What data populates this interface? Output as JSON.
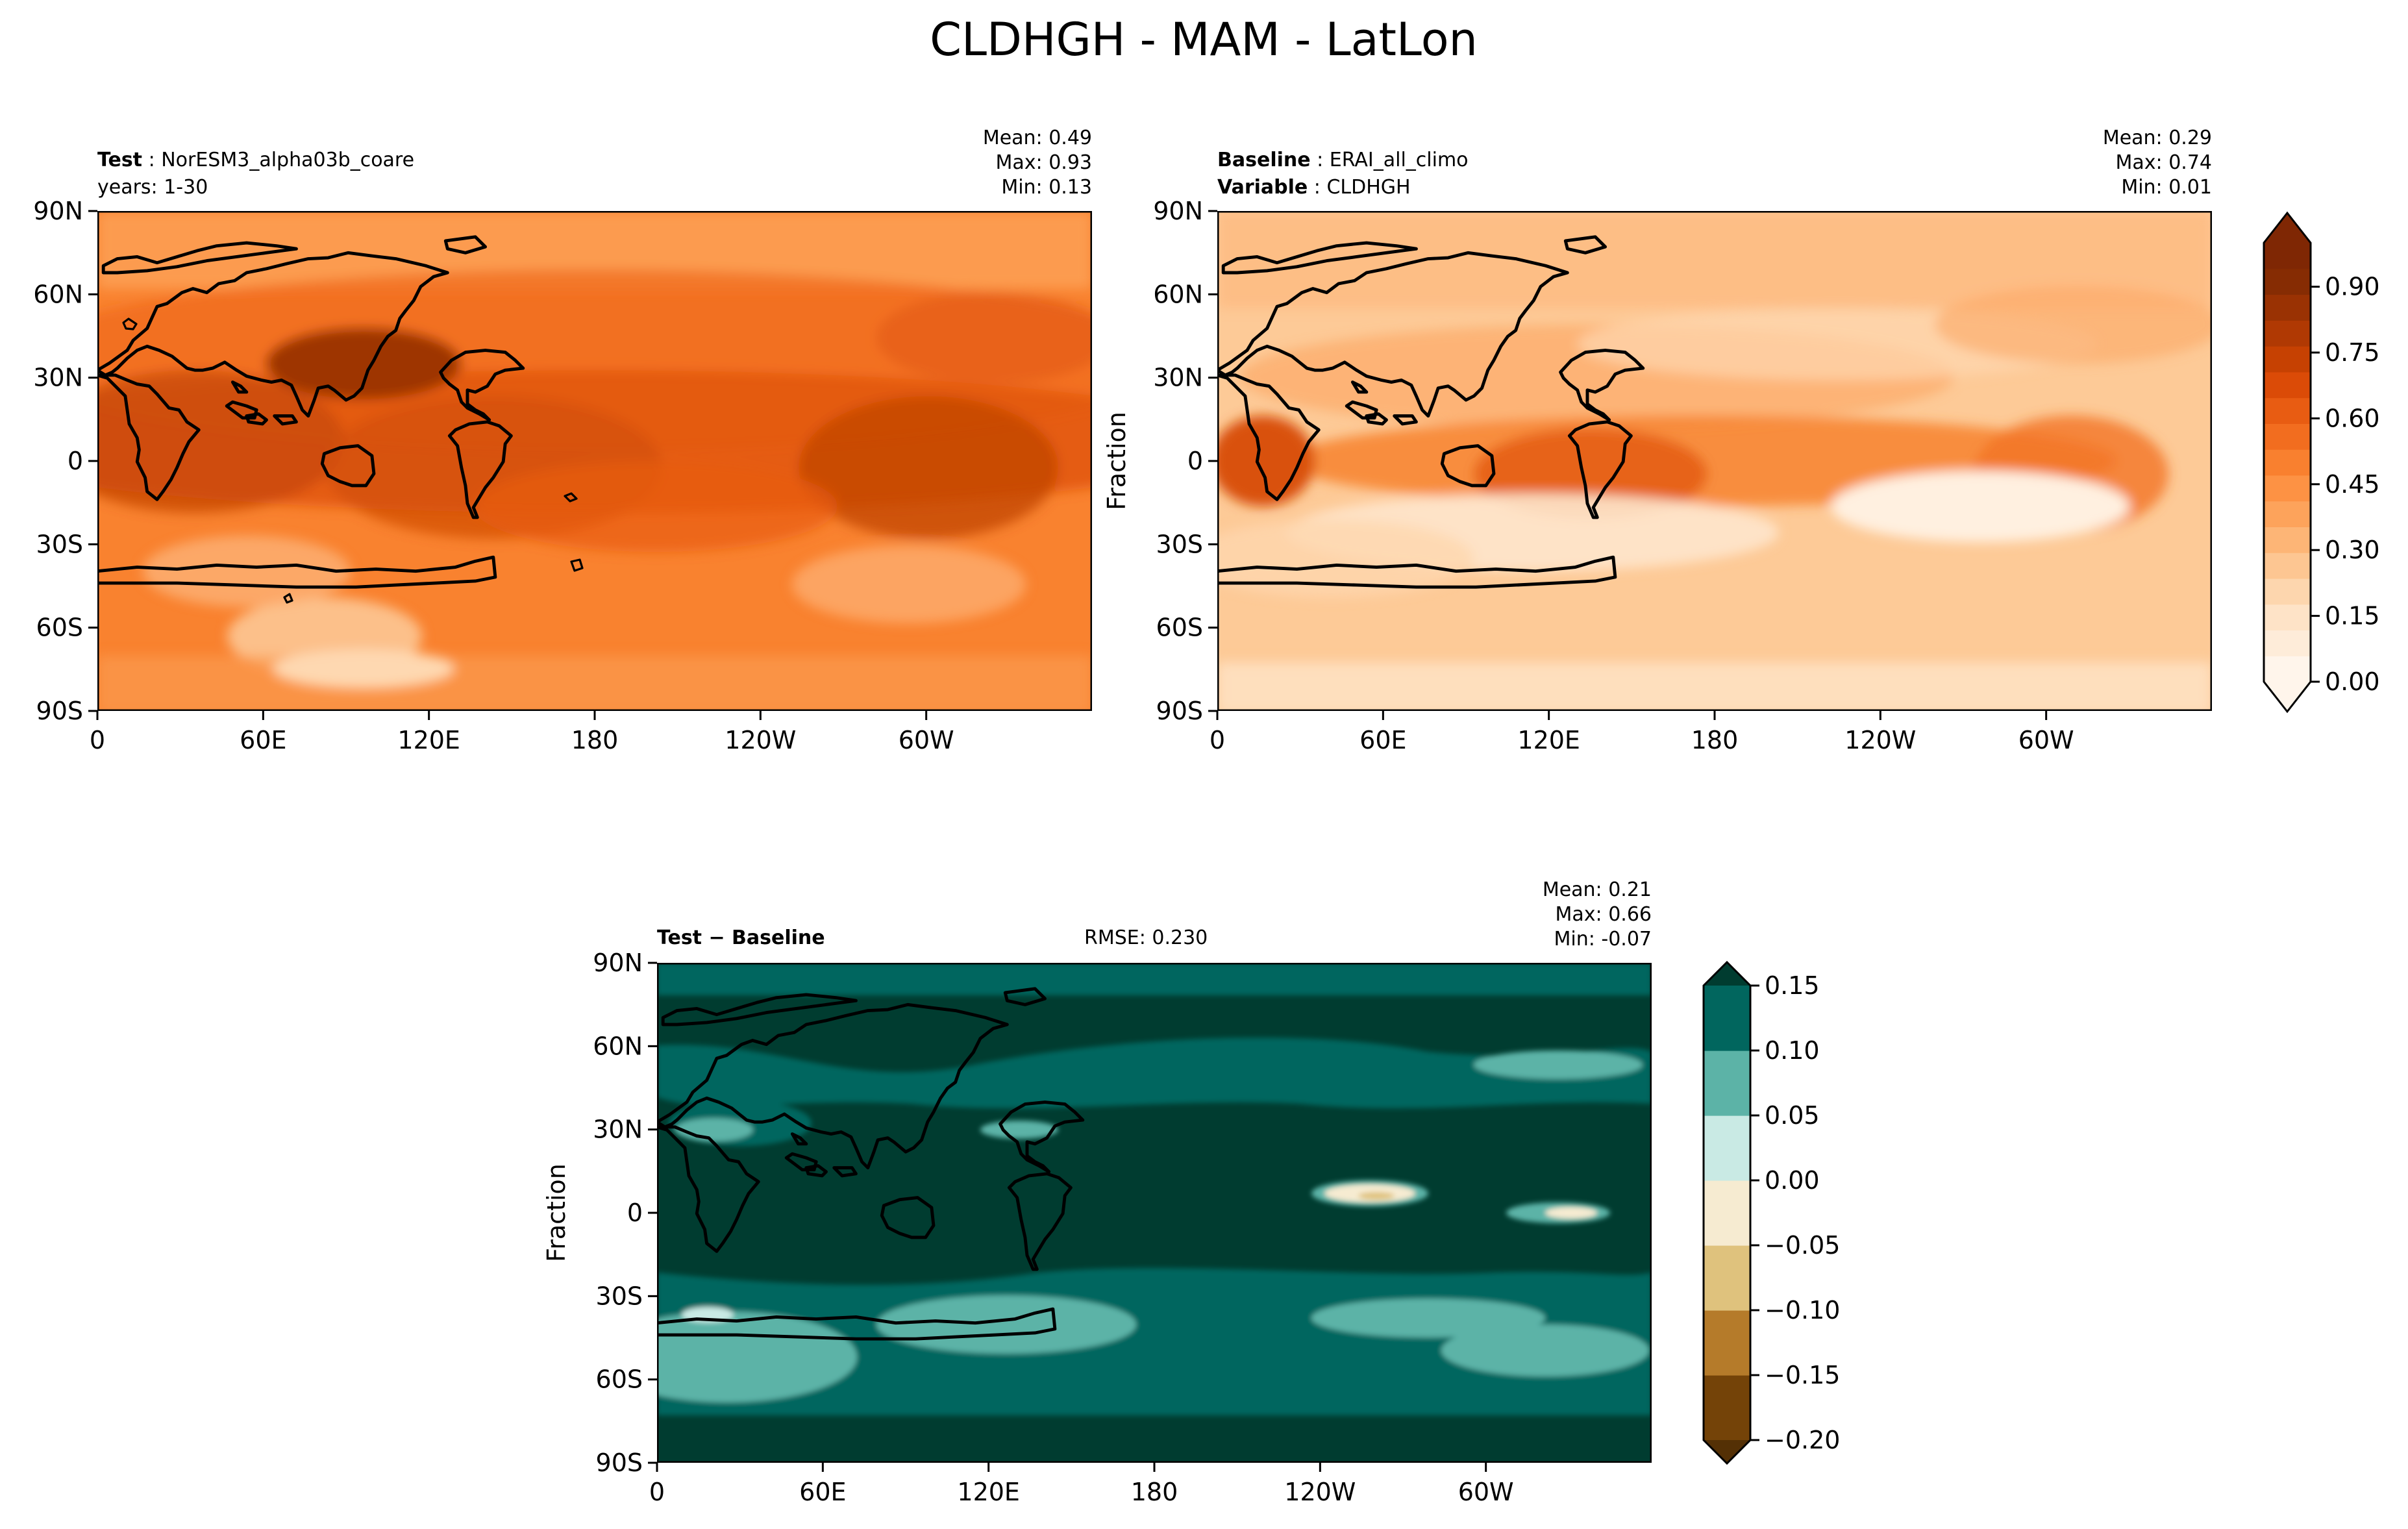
{
  "chart_data": {
    "title": "CLDHGH - MAM - LatLon",
    "type": "heatmap",
    "panels": [
      {
        "id": "test",
        "label_prefix": "Test",
        "label_text": "NorESM3_alpha03b_coare",
        "line2": "years: 1-30",
        "stats": {
          "mean": "Mean:  0.49",
          "max": "Max:  0.93",
          "min": "Min:  0.13"
        },
        "ylabel": "",
        "range": [
          0.0,
          1.0
        ]
      },
      {
        "id": "baseline",
        "label_prefix": "Baseline",
        "label_text": "ERAI_all_climo",
        "line2_prefix": "Variable",
        "line2_text": "CLDHGH",
        "stats": {
          "mean": "Mean:  0.29",
          "max": "Max:  0.74",
          "min": "Min:  0.01"
        },
        "ylabel": "Fraction",
        "range": [
          0.0,
          1.0
        ]
      },
      {
        "id": "diff",
        "label": "Test − Baseline",
        "rmse": "RMSE: 0.230",
        "stats": {
          "mean": "Mean:  0.21",
          "max": "Max:  0.66",
          "min": "Min: -0.07"
        },
        "ylabel": "Fraction",
        "range": [
          -0.2,
          0.15
        ]
      }
    ],
    "xticks": [
      "0",
      "60E",
      "120E",
      "180",
      "120W",
      "60W"
    ],
    "yticks": [
      "90N",
      "60N",
      "30N",
      "0",
      "30S",
      "60S",
      "90S"
    ],
    "colorbar_main": {
      "extend": "both",
      "ticks": [
        "0.00",
        "0.15",
        "0.30",
        "0.45",
        "0.60",
        "0.75",
        "0.90"
      ],
      "tick_values": [
        0.0,
        0.15,
        0.3,
        0.45,
        0.6,
        0.75,
        0.9
      ],
      "range": [
        0.0,
        1.0
      ],
      "colors": [
        "#fff5eb",
        "#feecd9",
        "#fee3c7",
        "#fdd6ae",
        "#fdc692",
        "#fdb576",
        "#fda35b",
        "#fd9244",
        "#f9802f",
        "#f26d1f",
        "#e85c12",
        "#db4b07",
        "#c64102",
        "#b03903",
        "#9a3203",
        "#862c03",
        "#7f2704"
      ]
    },
    "colorbar_diff": {
      "extend": "both",
      "ticks": [
        "−0.20",
        "−0.15",
        "−0.10",
        "−0.05",
        "0.00",
        "0.05",
        "0.10",
        "0.15"
      ],
      "tick_values": [
        -0.2,
        -0.15,
        -0.1,
        -0.05,
        0.0,
        0.05,
        0.1,
        0.15
      ],
      "colors": [
        "#744308",
        "#b57b2a",
        "#dfc27d",
        "#f6ebd1",
        "#c9eae4",
        "#5cb3a7",
        "#01665e"
      ],
      "over_color": "#003c30",
      "under_color": "#543005"
    }
  }
}
